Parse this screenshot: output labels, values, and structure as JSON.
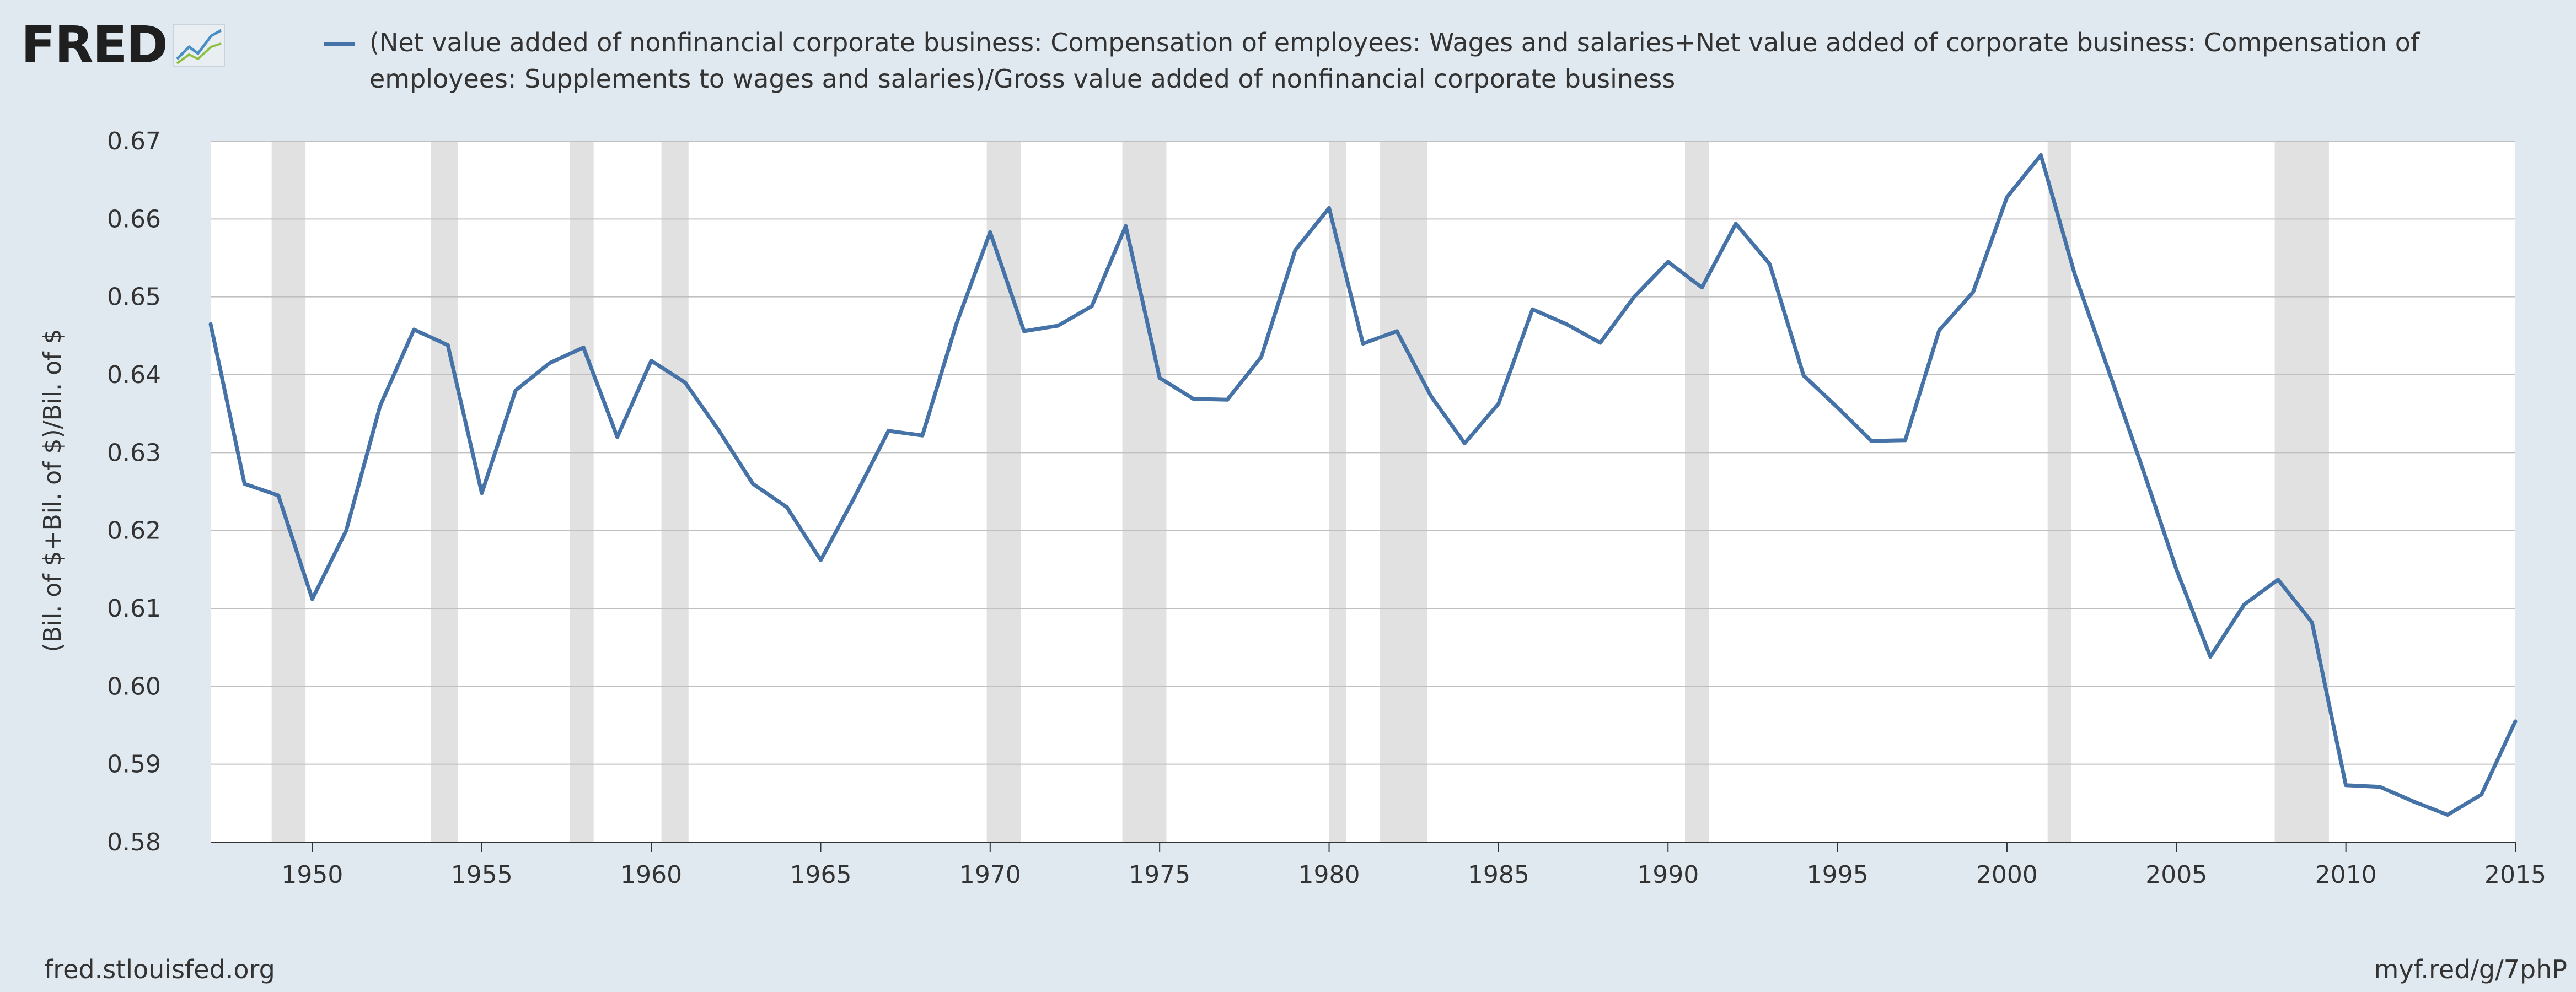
{
  "brand": {
    "logo_text": "FRED",
    "logo_icon": "chart-line-icon"
  },
  "legend": {
    "text": "(Net value added of nonfinancial corporate business: Compensation of employees: Wages and salaries+Net value added of corporate business: Compensation of employees: Supplements to wages and salaries)/Gross value added of nonfinancial corporate business"
  },
  "footer": {
    "left": "fred.stlouisfed.org",
    "right": "myf.red/g/7phP"
  },
  "colors": {
    "series": "#4572a7",
    "recession": "#e1e1e1",
    "background": "#e1e9f0",
    "plot": "#ffffff",
    "grid": "#c0c0c0"
  },
  "chart_data": {
    "type": "line",
    "title": "",
    "xlabel": "",
    "ylabel": "(Bil. of $+Bil. of $)/Bil. of $",
    "xlim": [
      1947,
      2015
    ],
    "ylim": [
      0.58,
      0.67
    ],
    "x_ticks": [
      1950,
      1955,
      1960,
      1965,
      1970,
      1975,
      1980,
      1985,
      1990,
      1995,
      2000,
      2005,
      2010,
      2015
    ],
    "y_ticks": [
      "0.58",
      "0.59",
      "0.60",
      "0.61",
      "0.62",
      "0.63",
      "0.64",
      "0.65",
      "0.66",
      "0.67"
    ],
    "grid": true,
    "legend_position": "top",
    "recessions": [
      [
        1948.8,
        1949.8
      ],
      [
        1953.5,
        1954.3
      ],
      [
        1957.6,
        1958.3
      ],
      [
        1960.3,
        1961.1
      ],
      [
        1969.9,
        1970.9
      ],
      [
        1973.9,
        1975.2
      ],
      [
        1980.0,
        1980.5
      ],
      [
        1981.5,
        1982.9
      ],
      [
        1990.5,
        1991.2
      ],
      [
        2001.2,
        2001.9
      ],
      [
        2007.9,
        2009.5
      ]
    ],
    "series": [
      {
        "name": "(Net value added of nonfinancial corporate business: Compensation of employees: Wages and salaries+Net value added of corporate business: Compensation of employees: Supplements to wages and salaries)/Gross value added of nonfinancial corporate business",
        "x": [
          1947,
          1948,
          1949,
          1950,
          1951,
          1952,
          1953,
          1954,
          1955,
          1956,
          1957,
          1958,
          1959,
          1960,
          1961,
          1962,
          1963,
          1964,
          1965,
          1966,
          1967,
          1968,
          1969,
          1970,
          1971,
          1972,
          1973,
          1974,
          1975,
          1976,
          1977,
          1978,
          1979,
          1980,
          1981,
          1982,
          1983,
          1984,
          1985,
          1986,
          1987,
          1988,
          1989,
          1990,
          1991,
          1992,
          1993,
          1994,
          1995,
          1996,
          1997,
          1998,
          1999,
          2000,
          2001,
          2002,
          2003,
          2004,
          2005,
          2006,
          2007,
          2008,
          2009,
          2010,
          2011,
          2012,
          2013,
          2014,
          2015
        ],
        "values": [
          0.6465,
          0.626,
          0.6245,
          0.6112,
          0.62,
          0.636,
          0.6458,
          0.6438,
          0.6248,
          0.638,
          0.6415,
          0.6435,
          0.632,
          0.6418,
          0.639,
          0.6328,
          0.626,
          0.623,
          0.6162,
          0.6243,
          0.6328,
          0.6322,
          0.6465,
          0.6583,
          0.6456,
          0.6463,
          0.6488,
          0.6591,
          0.6396,
          0.6369,
          0.6368,
          0.6423,
          0.656,
          0.6614,
          0.644,
          0.6456,
          0.6373,
          0.6312,
          0.6363,
          0.6484,
          0.6465,
          0.6441,
          0.65,
          0.6545,
          0.6512,
          0.6594,
          0.6542,
          0.6399,
          0.6358,
          0.6315,
          0.6316,
          0.6457,
          0.6506,
          0.6628,
          0.6682,
          0.6529,
          0.6405,
          0.628,
          0.615,
          0.6038,
          0.6105,
          0.6137,
          0.6082,
          0.5873,
          0.5871,
          0.5852,
          0.5835,
          0.5861,
          0.5955
        ]
      }
    ]
  }
}
